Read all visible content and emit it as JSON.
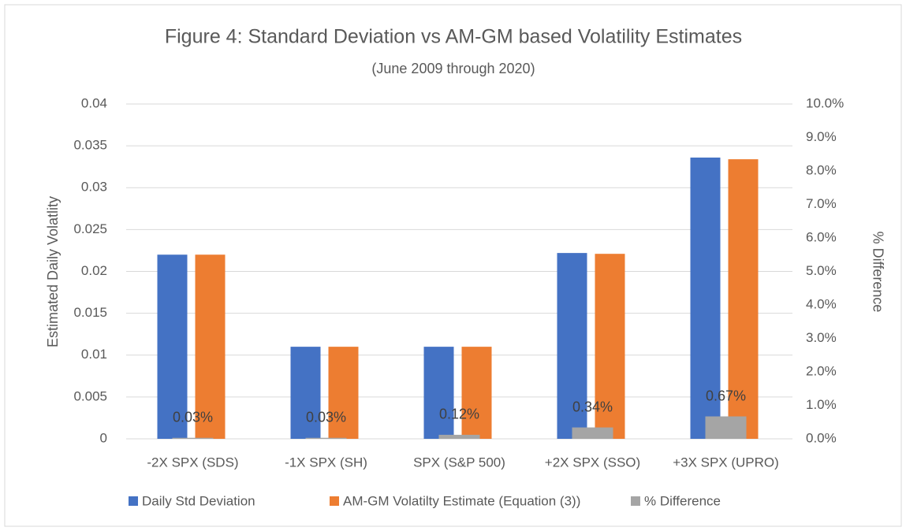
{
  "chart_data": {
    "type": "bar",
    "title": "Figure 4: Standard Deviation vs AM-GM based Volatility Estimates",
    "subtitle": "(June 2009 through 2020)",
    "y_label": "Estimated Daily Volatlity",
    "y2_label": "% Difference",
    "categories": [
      "-2X SPX (SDS)",
      "-1X SPX (SH)",
      "SPX (S&P 500)",
      "+2X SPX (SSO)",
      "+3X SPX (UPRO)"
    ],
    "series": [
      {
        "name": "Daily Std Deviation",
        "color": "#4472c4",
        "values": [
          0.022,
          0.011,
          0.011,
          0.0222,
          0.0336
        ]
      },
      {
        "name": "AM-GM Volatilty Estimate (Equation (3))",
        "color": "#ed7d31",
        "values": [
          0.022,
          0.011,
          0.011,
          0.0221,
          0.0334
        ]
      },
      {
        "name": "% Difference",
        "color": "#a5a5a5",
        "axis": "y2",
        "values": [
          0.03,
          0.03,
          0.12,
          0.34,
          0.67
        ],
        "value_labels": [
          "0.03%",
          "0.03%",
          "0.12%",
          "0.34%",
          "0.67%"
        ]
      }
    ],
    "ylim": [
      0,
      0.04
    ],
    "yticks": [
      0,
      0.005,
      0.01,
      0.015,
      0.02,
      0.025,
      0.03,
      0.035,
      0.04
    ],
    "y2lim": [
      0,
      10
    ],
    "y2ticks": [
      {
        "value": 0,
        "label": "0.0%"
      },
      {
        "value": 1,
        "label": "1.0%"
      },
      {
        "value": 2,
        "label": "2.0%"
      },
      {
        "value": 3,
        "label": "3.0%"
      },
      {
        "value": 4,
        "label": "4.0%"
      },
      {
        "value": 5,
        "label": "5.0%"
      },
      {
        "value": 6,
        "label": "6.0%"
      },
      {
        "value": 7,
        "label": "7.0%"
      },
      {
        "value": 8,
        "label": "8.0%"
      },
      {
        "value": 9,
        "label": "9.0%"
      },
      {
        "value": 10,
        "label": "10.0%"
      }
    ],
    "grid": true,
    "legend": "bottom"
  }
}
